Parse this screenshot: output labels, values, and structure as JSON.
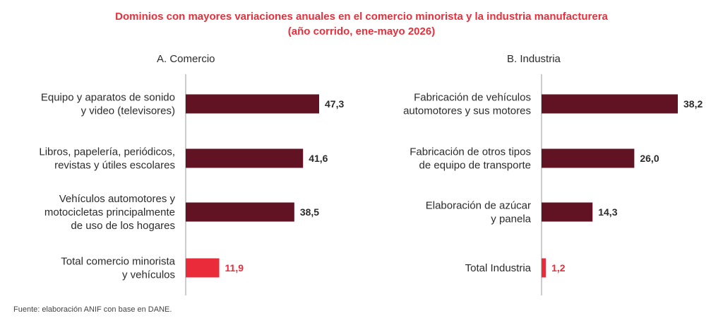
{
  "title_line1": "Dominios con mayores variaciones anuales en el comercio minorista y la industria manufacturera",
  "title_line2": "(año corrido, ene-mayo 2026)",
  "source": "Fuente: elaboración ANIF con base en DANE.",
  "colors": {
    "dark": "#611223",
    "highlight": "#ea2b39",
    "title": "#e8303c",
    "text": "#2b2b2b"
  },
  "chart_data": [
    {
      "type": "bar",
      "orientation": "horizontal",
      "title": "A. Comercio",
      "categories": [
        [
          "Equipo y aparatos de sonido",
          "y video (televisores)"
        ],
        [
          "Libros, papelería, periódicos,",
          "revistas y útiles escolares"
        ],
        [
          "Vehículos automotores y",
          "motocicletas principalmente",
          "de uso de los hogares"
        ],
        [
          "Total comercio minorista",
          "y vehículos"
        ]
      ],
      "values": [
        47.3,
        41.6,
        38.5,
        11.9
      ],
      "labels": [
        "47,3",
        "41,6",
        "38,5",
        "11,9"
      ],
      "highlight": [
        false,
        false,
        false,
        true
      ],
      "xlim": [
        0,
        50
      ]
    },
    {
      "type": "bar",
      "orientation": "horizontal",
      "title": "B. Industria",
      "categories": [
        [
          "Fabricación de vehículos",
          "automotores y sus motores"
        ],
        [
          "Fabricación de otros tipos",
          "de equipo de transporte"
        ],
        [
          "Elaboración de azúcar",
          "y panela"
        ],
        [
          "Total Industria"
        ]
      ],
      "values": [
        38.2,
        26.0,
        14.3,
        1.2
      ],
      "labels": [
        "38,2",
        "26,0",
        "14,3",
        "1,2"
      ],
      "highlight": [
        false,
        false,
        false,
        true
      ],
      "xlim": [
        0,
        40
      ]
    }
  ]
}
